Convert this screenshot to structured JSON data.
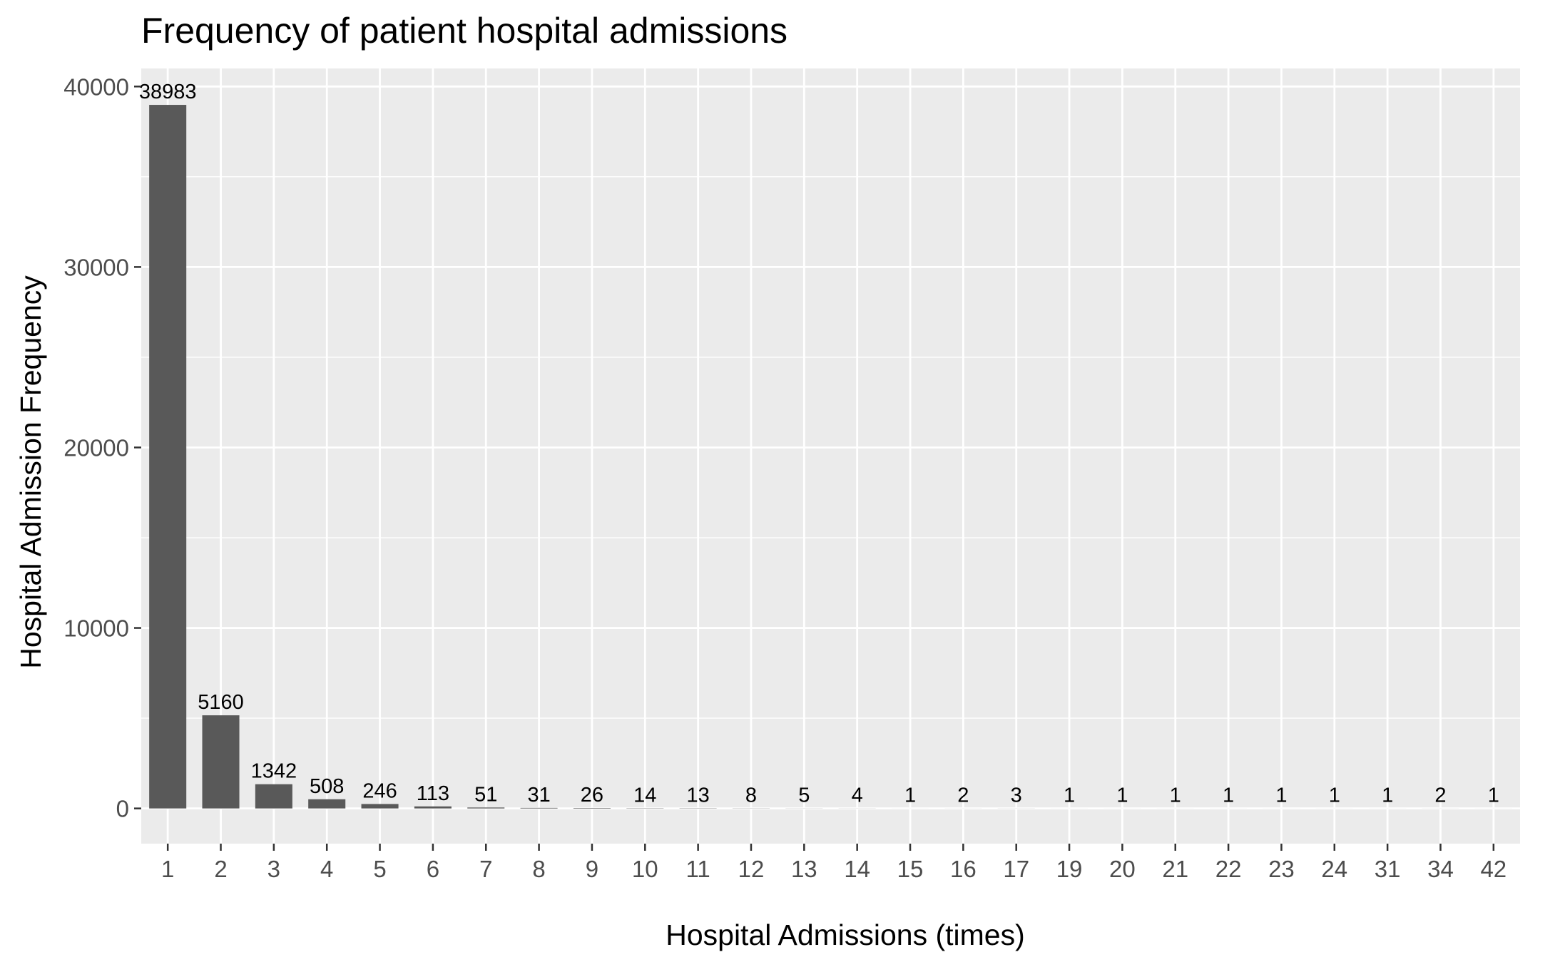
{
  "colors": {
    "panel_background": "#ebebeb",
    "grid": "#ffffff",
    "bar_fill": "#595959",
    "tick_text": "#4d4d4d",
    "tick_mark": "#333333",
    "text": "#000000"
  },
  "chart_data": {
    "type": "bar",
    "title": "Frequency of patient hospital admissions",
    "xlabel": "Hospital Admissions (times)",
    "ylabel": "Hospital Admission Frequency",
    "categories": [
      "1",
      "2",
      "3",
      "4",
      "5",
      "6",
      "7",
      "8",
      "9",
      "10",
      "11",
      "12",
      "13",
      "14",
      "15",
      "16",
      "17",
      "19",
      "20",
      "21",
      "22",
      "23",
      "24",
      "31",
      "34",
      "42"
    ],
    "values": [
      38983,
      5160,
      1342,
      508,
      246,
      113,
      51,
      31,
      26,
      14,
      13,
      8,
      5,
      4,
      1,
      2,
      3,
      1,
      1,
      1,
      1,
      1,
      1,
      1,
      2,
      1
    ],
    "data_labels": [
      "38983",
      "5160",
      "1342",
      "508",
      "246",
      "113",
      "51",
      "31",
      "26",
      "14",
      "13",
      "8",
      "5",
      "4",
      "1",
      "2",
      "3",
      "1",
      "1",
      "1",
      "1",
      "1",
      "1",
      "1",
      "2",
      "1"
    ],
    "y_ticks": [
      0,
      10000,
      20000,
      30000,
      40000
    ],
    "y_tick_labels": [
      "0",
      "10000",
      "20000",
      "30000",
      "40000"
    ],
    "ylim": [
      -1950,
      41000
    ],
    "grid": true,
    "legend": "none"
  }
}
